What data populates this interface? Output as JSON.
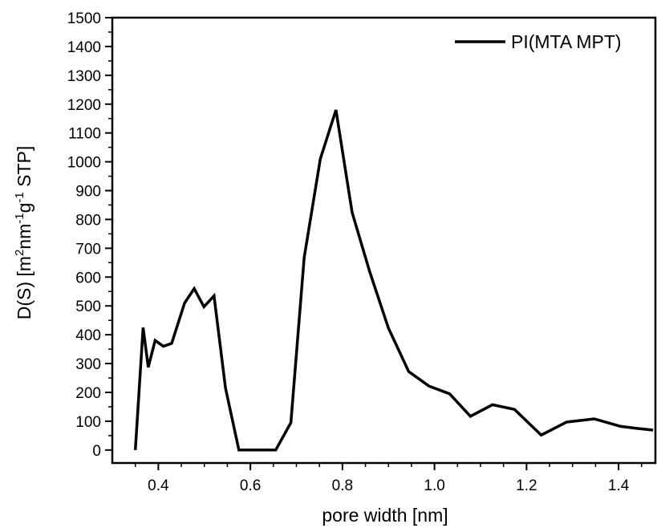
{
  "chart_data": {
    "type": "line",
    "xlabel": "pore width [nm]",
    "ylabel": {
      "parts": [
        {
          "text": "D(S) [m"
        },
        {
          "text": "2",
          "sup": true
        },
        {
          "text": "nm"
        },
        {
          "text": "-1",
          "sup": true
        },
        {
          "text": "g"
        },
        {
          "text": "-1",
          "sup": true
        },
        {
          "text": " STP]"
        }
      ]
    },
    "xlim": [
      0.3,
      1.48
    ],
    "ylim": [
      -45,
      1500
    ],
    "xticks": [
      0.4,
      0.6,
      0.8,
      1.0,
      1.2,
      1.4
    ],
    "xtick_labels": [
      "0.4",
      "0.6",
      "0.8",
      "1.0",
      "1.2",
      "1.4"
    ],
    "xminor_step": 0.05,
    "yticks": [
      0,
      100,
      200,
      300,
      400,
      500,
      600,
      700,
      800,
      900,
      1000,
      1100,
      1200,
      1300,
      1400,
      1500
    ],
    "ytick_labels": [
      "0",
      "100",
      "200",
      "300",
      "400",
      "500",
      "600",
      "700",
      "800",
      "900",
      "1000",
      "1100",
      "1200",
      "1300",
      "1400",
      "1500"
    ],
    "yminor_step": 50,
    "grid": false,
    "legend_position": "top-right",
    "series": [
      {
        "name": "PI(MTA MPT)",
        "color": "#000000",
        "x": [
          0.35,
          0.367,
          0.378,
          0.393,
          0.411,
          0.429,
          0.457,
          0.478,
          0.499,
          0.521,
          0.546,
          0.575,
          0.594,
          0.625,
          0.655,
          0.688,
          0.717,
          0.752,
          0.786,
          0.821,
          0.859,
          0.9,
          0.944,
          0.988,
          1.033,
          1.078,
          1.126,
          1.174,
          1.232,
          1.287,
          1.347,
          1.405,
          1.44,
          1.475
        ],
        "y": [
          0,
          425,
          287,
          380,
          360,
          370,
          510,
          560,
          497,
          535,
          215,
          0,
          0,
          0,
          0,
          95,
          668,
          1010,
          1180,
          825,
          620,
          423,
          272,
          222,
          195,
          117,
          157,
          141,
          52,
          97,
          108,
          82,
          75,
          69
        ]
      }
    ]
  }
}
